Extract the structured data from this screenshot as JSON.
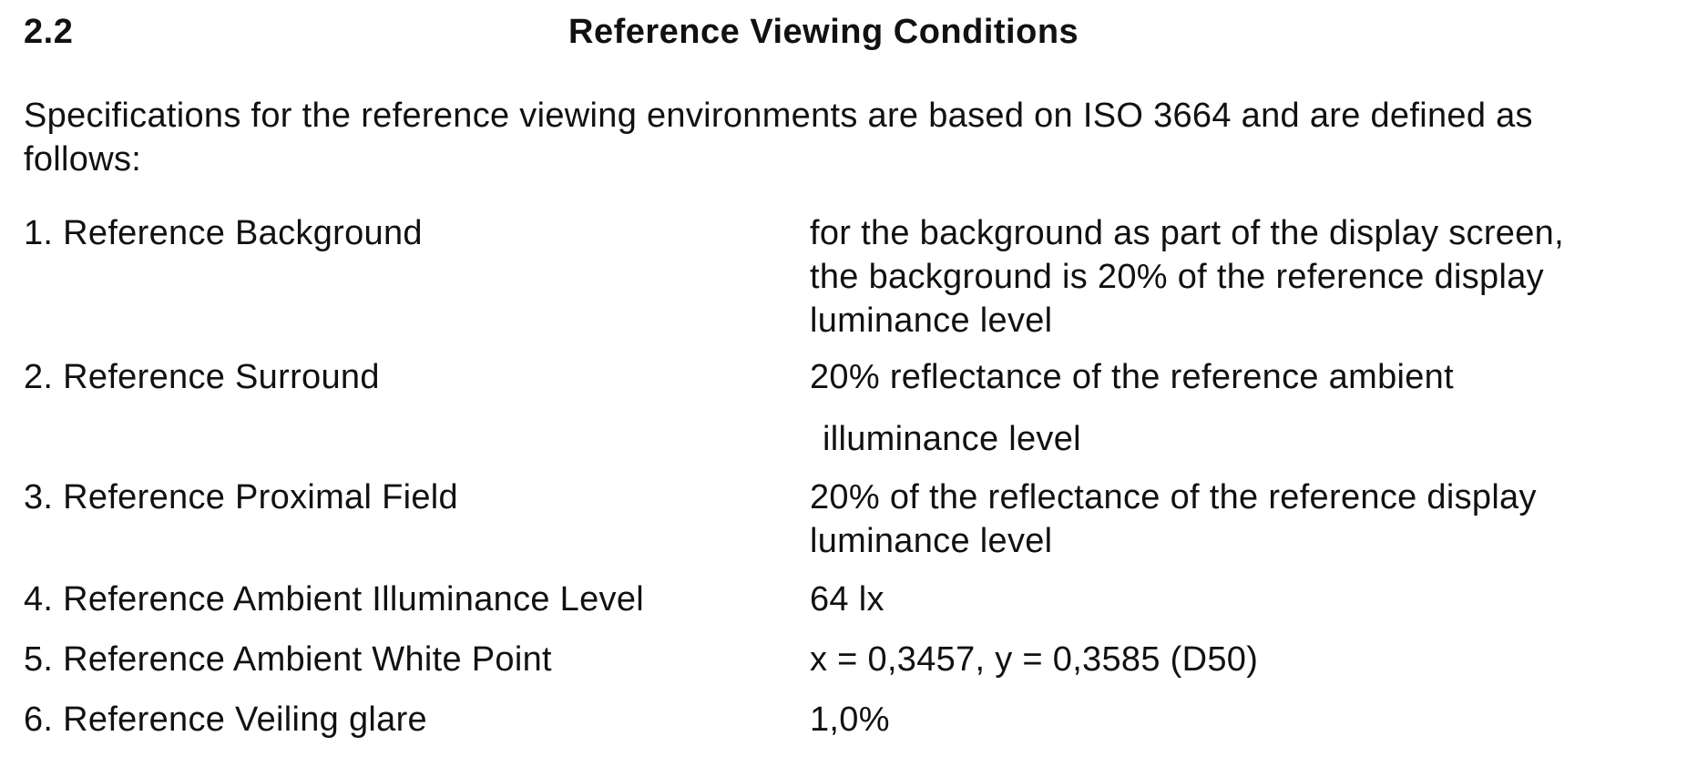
{
  "section": {
    "number": "2.2",
    "title": "Reference Viewing Conditions"
  },
  "intro": {
    "line1": "Specifications for the reference viewing environments are based on ISO 3664 and are defined as",
    "line2": "follows:"
  },
  "items": [
    {
      "label": "1.  Reference Background",
      "value_lines": [
        "for the background as part of the display screen,",
        "the background is 20% of the reference display",
        "luminance level"
      ]
    },
    {
      "label": "2. Reference Surround",
      "value_lines": [
        "20% reflectance of the reference ambient",
        "illuminance level"
      ]
    },
    {
      "label": "3. Reference Proximal Field",
      "value_lines": [
        "20% of the reflectance of the reference display",
        "luminance level"
      ]
    },
    {
      "label": "4.  Reference Ambient Illuminance Level",
      "value_lines": [
        "64 lx"
      ]
    },
    {
      "label": "5.  Reference Ambient White Point",
      "value_lines": [
        "x = 0,3457, y = 0,3585  (D50)"
      ]
    },
    {
      "label": "6.  Reference Veiling glare",
      "value_lines": [
        "1,0%"
      ]
    }
  ]
}
